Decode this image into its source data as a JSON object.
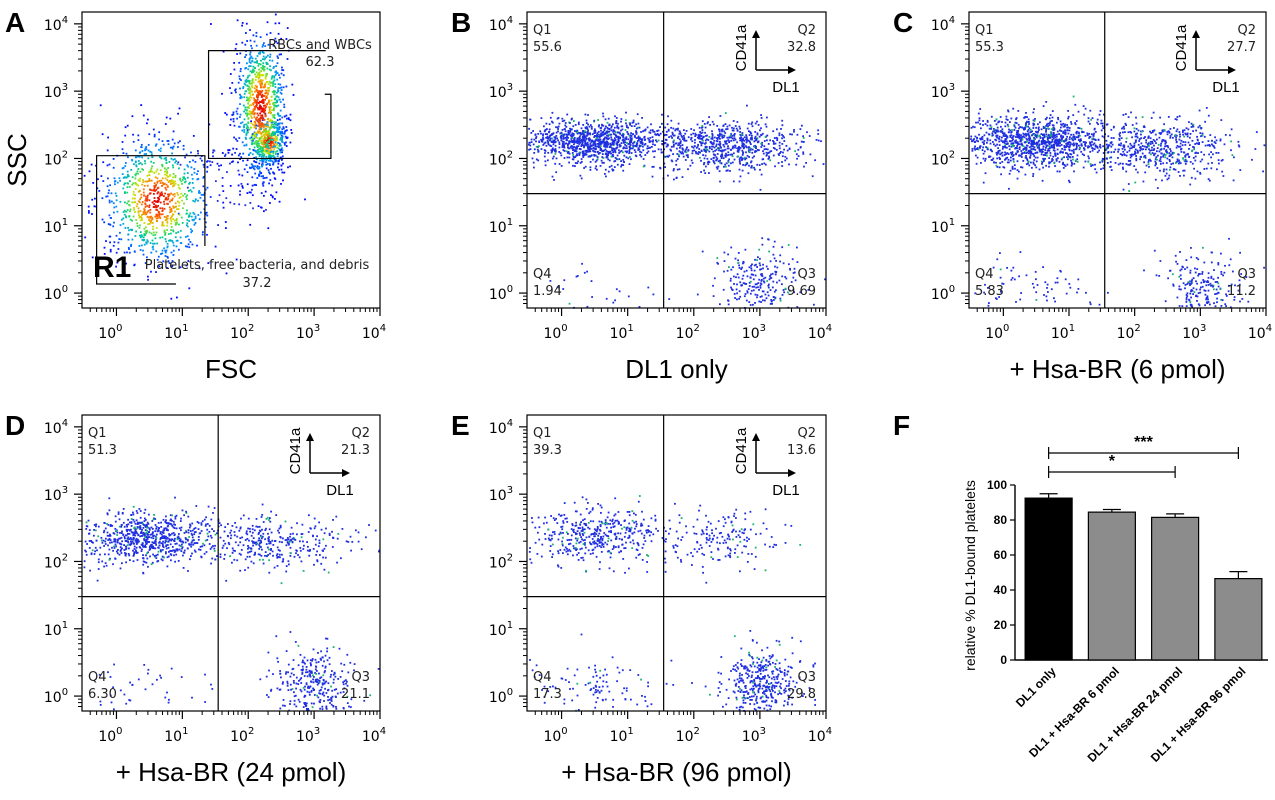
{
  "chart_data": [
    {
      "id": "A",
      "type": "scatter",
      "panel_label": "A",
      "xlabel": "FSC",
      "ylabel": "SSC",
      "scale": "log",
      "xlim": [
        0.3,
        10000
      ],
      "ylim": [
        0.6,
        15000
      ],
      "tick_labels": [
        "10",
        "10",
        "10",
        "10",
        "10"
      ],
      "tick_exponents": [
        "0",
        "1",
        "2",
        "3",
        "4"
      ],
      "color": "density",
      "gates": [
        {
          "name": "RBCs and WBCs",
          "value": "62.3",
          "clusters": [
            {
              "x": 200,
              "y": 180,
              "sx": 0.1,
              "sy": 0.13,
              "n": 350
            },
            {
              "x": 150,
              "y": 600,
              "sx": 0.14,
              "sy": 0.4,
              "n": 900
            }
          ]
        },
        {
          "name": "R1",
          "label": "Platelets, free bacteria, and debris",
          "value": "37.2",
          "clusters": [
            {
              "x": 4,
              "y": 25,
              "sx": 0.3,
              "sy": 0.35,
              "n": 900
            }
          ]
        }
      ]
    },
    {
      "id": "B",
      "type": "scatter",
      "panel_label": "B",
      "xlabel": "DL1 only",
      "scale": "log",
      "xlim": [
        0.3,
        10000
      ],
      "ylim": [
        0.6,
        15000
      ],
      "tick_labels": [
        "10",
        "10",
        "10",
        "10",
        "10"
      ],
      "tick_exponents": [
        "0",
        "1",
        "2",
        "3",
        "4"
      ],
      "axes_key": {
        "y": "CD41a",
        "x": "DL1"
      },
      "quadrants": [
        {
          "name": "Q1",
          "value": "55.6"
        },
        {
          "name": "Q2",
          "value": "32.8"
        },
        {
          "name": "Q3",
          "value": "9.69"
        },
        {
          "name": "Q4",
          "value": "1.94"
        }
      ],
      "populations": [
        {
          "x": 3,
          "y": 180,
          "sx": 0.4,
          "sy": 0.12,
          "n": 1100
        },
        {
          "x": 300,
          "y": 160,
          "sx": 0.4,
          "sy": 0.13,
          "n": 700
        },
        {
          "x": 900,
          "y": 1.5,
          "sx": 0.22,
          "sy": 0.18,
          "n": 250
        },
        {
          "x": 3,
          "y": 1.2,
          "sx": 0.35,
          "sy": 0.15,
          "n": 25
        }
      ]
    },
    {
      "id": "C",
      "type": "scatter",
      "panel_label": "C",
      "xlabel": "+ Hsa-BR (6 pmol)",
      "scale": "log",
      "xlim": [
        0.3,
        10000
      ],
      "ylim": [
        0.6,
        15000
      ],
      "tick_labels": [
        "10",
        "10",
        "10",
        "10",
        "10"
      ],
      "tick_exponents": [
        "0",
        "1",
        "2",
        "3",
        "4"
      ],
      "axes_key": {
        "y": "CD41a",
        "x": "DL1"
      },
      "quadrants": [
        {
          "name": "Q1",
          "value": "55.3"
        },
        {
          "name": "Q2",
          "value": "27.7"
        },
        {
          "name": "Q3",
          "value": "11.2"
        },
        {
          "name": "Q4",
          "value": "5.83"
        }
      ],
      "populations": [
        {
          "x": 3,
          "y": 180,
          "sx": 0.42,
          "sy": 0.14,
          "n": 1100
        },
        {
          "x": 250,
          "y": 150,
          "sx": 0.4,
          "sy": 0.15,
          "n": 550
        },
        {
          "x": 1000,
          "y": 1.3,
          "sx": 0.22,
          "sy": 0.18,
          "n": 230
        },
        {
          "x": 3,
          "y": 1.2,
          "sx": 0.35,
          "sy": 0.15,
          "n": 70
        }
      ]
    },
    {
      "id": "D",
      "type": "scatter",
      "panel_label": "D",
      "xlabel": "+ Hsa-BR (24 pmol)",
      "scale": "log",
      "xlim": [
        0.3,
        10000
      ],
      "ylim": [
        0.6,
        15000
      ],
      "tick_labels": [
        "10",
        "10",
        "10",
        "10",
        "10"
      ],
      "tick_exponents": [
        "0",
        "1",
        "2",
        "3",
        "4"
      ],
      "axes_key": {
        "y": "CD41a",
        "x": "DL1"
      },
      "quadrants": [
        {
          "name": "Q1",
          "value": "51.3"
        },
        {
          "name": "Q2",
          "value": "21.3"
        },
        {
          "name": "Q3",
          "value": "21.1"
        },
        {
          "name": "Q4",
          "value": "6.30"
        }
      ],
      "populations": [
        {
          "x": 3,
          "y": 230,
          "sx": 0.4,
          "sy": 0.14,
          "n": 750
        },
        {
          "x": 250,
          "y": 200,
          "sx": 0.4,
          "sy": 0.15,
          "n": 320
        },
        {
          "x": 1000,
          "y": 1.5,
          "sx": 0.22,
          "sy": 0.2,
          "n": 320
        },
        {
          "x": 3,
          "y": 1.3,
          "sx": 0.35,
          "sy": 0.15,
          "n": 40
        }
      ]
    },
    {
      "id": "E",
      "type": "scatter",
      "panel_label": "E",
      "xlabel": "+ Hsa-BR (96 pmol)",
      "scale": "log",
      "xlim": [
        0.3,
        10000
      ],
      "ylim": [
        0.6,
        15000
      ],
      "tick_labels": [
        "10",
        "10",
        "10",
        "10",
        "10"
      ],
      "tick_exponents": [
        "0",
        "1",
        "2",
        "3",
        "4"
      ],
      "axes_key": {
        "y": "CD41a",
        "x": "DL1"
      },
      "quadrants": [
        {
          "name": "Q1",
          "value": "39.3"
        },
        {
          "name": "Q2",
          "value": "13.6"
        },
        {
          "name": "Q3",
          "value": "29.8"
        },
        {
          "name": "Q4",
          "value": "17.3"
        }
      ],
      "populations": [
        {
          "x": 3,
          "y": 250,
          "sx": 0.35,
          "sy": 0.15,
          "n": 420
        },
        {
          "x": 250,
          "y": 220,
          "sx": 0.38,
          "sy": 0.15,
          "n": 180
        },
        {
          "x": 1000,
          "y": 1.6,
          "sx": 0.2,
          "sy": 0.2,
          "n": 400
        },
        {
          "x": 3,
          "y": 1.3,
          "sx": 0.35,
          "sy": 0.18,
          "n": 110
        }
      ]
    },
    {
      "id": "F",
      "type": "bar",
      "panel_label": "F",
      "categories": [
        "DL1 only",
        "DL1 + Hsa-BR 6 pmol",
        "DL1 + Hsa-BR 24 pmol",
        "DL1 + Hsa-BR 96 pmol"
      ],
      "values": [
        92.5,
        84.5,
        81.5,
        46.5
      ],
      "errors": [
        2.5,
        1.5,
        2.0,
        4.0
      ],
      "colors": [
        "#000000",
        "#8c8c8c",
        "#8c8c8c",
        "#8c8c8c"
      ],
      "ylabel": "relative % DL1-bound platelets",
      "ylim": [
        0,
        100
      ],
      "yticks": [
        "0",
        "20",
        "40",
        "60",
        "80",
        "100"
      ],
      "significance": [
        {
          "from": 0,
          "to": 2,
          "label": "*"
        },
        {
          "from": 0,
          "to": 3,
          "label": "***"
        }
      ]
    }
  ]
}
